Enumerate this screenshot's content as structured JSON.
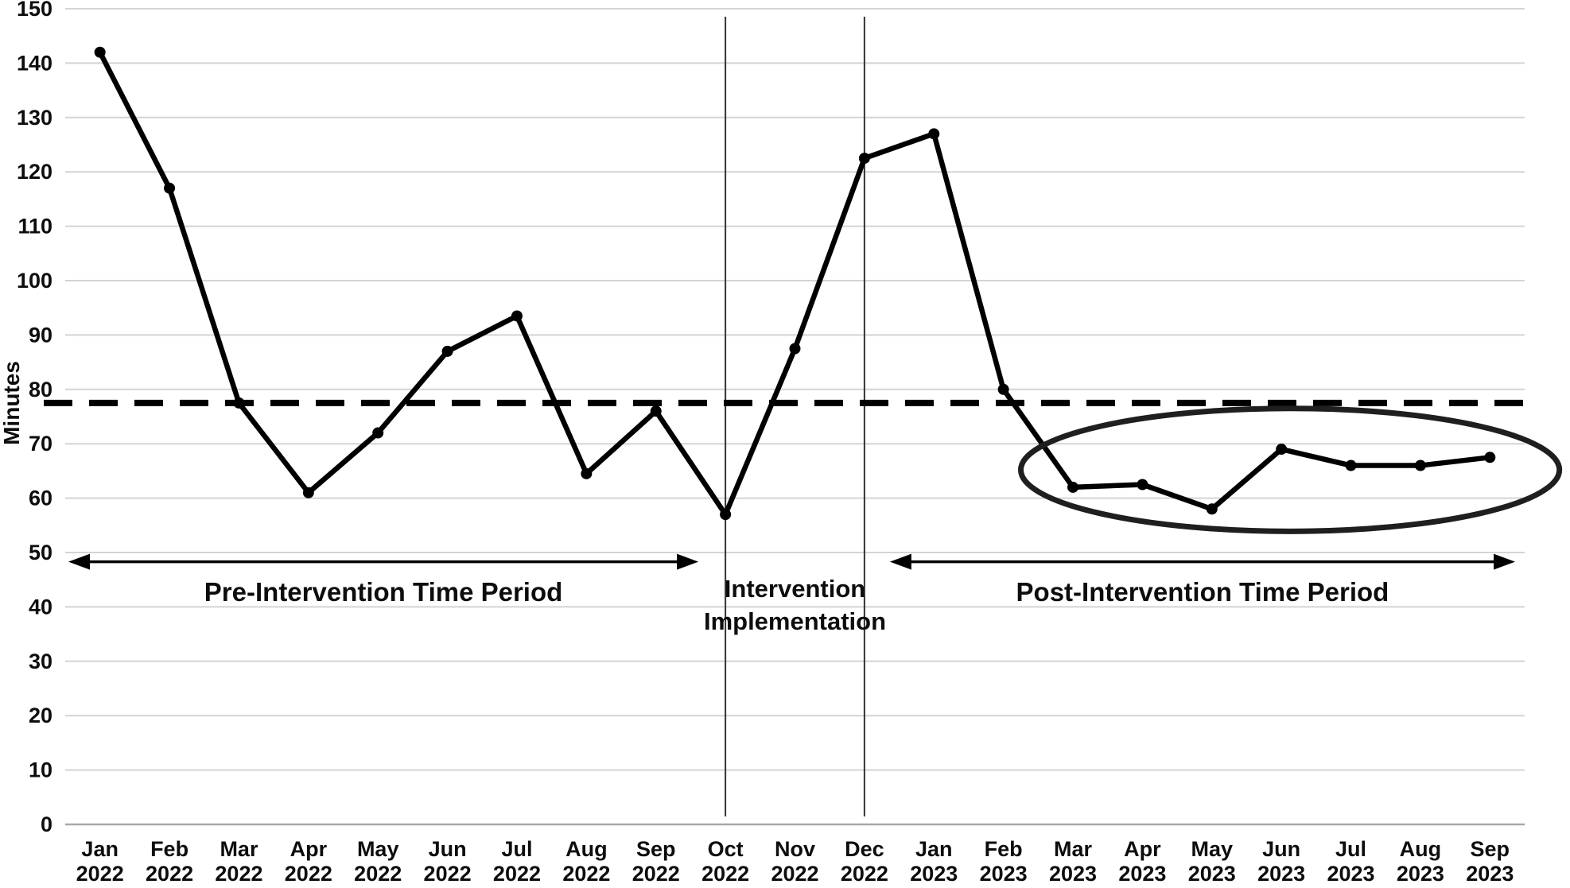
{
  "chart_data": {
    "type": "line",
    "title": "",
    "xlabel": "",
    "ylabel": "Minutes",
    "ylim": [
      0,
      150
    ],
    "ytick_step": 10,
    "grid": "horizontal",
    "legend": "none",
    "categories": [
      {
        "month": "Jan",
        "year": "2022"
      },
      {
        "month": "Feb",
        "year": "2022"
      },
      {
        "month": "Mar",
        "year": "2022"
      },
      {
        "month": "Apr",
        "year": "2022"
      },
      {
        "month": "May",
        "year": "2022"
      },
      {
        "month": "Jun",
        "year": "2022"
      },
      {
        "month": "Jul",
        "year": "2022"
      },
      {
        "month": "Aug",
        "year": "2022"
      },
      {
        "month": "Sep",
        "year": "2022"
      },
      {
        "month": "Oct",
        "year": "2022"
      },
      {
        "month": "Nov",
        "year": "2022"
      },
      {
        "month": "Dec",
        "year": "2022"
      },
      {
        "month": "Jan",
        "year": "2023"
      },
      {
        "month": "Feb",
        "year": "2023"
      },
      {
        "month": "Mar",
        "year": "2023"
      },
      {
        "month": "Apr",
        "year": "2023"
      },
      {
        "month": "May",
        "year": "2023"
      },
      {
        "month": "Jun",
        "year": "2023"
      },
      {
        "month": "Jul",
        "year": "2023"
      },
      {
        "month": "Aug",
        "year": "2023"
      },
      {
        "month": "Sep",
        "year": "2023"
      }
    ],
    "series": [
      {
        "name": "Minutes",
        "values": [
          142,
          117,
          77.5,
          61,
          72,
          87,
          93.5,
          64.5,
          76,
          57,
          87.5,
          122.5,
          127,
          80,
          62,
          62.5,
          58,
          69,
          66,
          66,
          67.5
        ]
      }
    ],
    "annotations": {
      "mean_line": {
        "value": 77.5,
        "style": "dashed"
      },
      "pre_period": {
        "label": "Pre-Intervention Time Period",
        "from_index": 0,
        "to_index": 9
      },
      "intervention_window": {
        "label_line1": "Intervention",
        "label_line2": "Implementation",
        "from_category": "Oct 2022",
        "to_category": "Dec 2022",
        "from_index": 9,
        "to_index": 11
      },
      "post_period": {
        "label": "Post-Intervention Time Period",
        "from_index": 11,
        "to_index": 20
      },
      "highlight_ellipse": {
        "from_index": 14,
        "to_index": 20,
        "center_value": 65.2,
        "value_radius": 11.3
      }
    },
    "colors": {
      "line": "#000000",
      "marker": "#000000",
      "grid": "#d4d4d4",
      "axis_line": "#a8a8a8",
      "boundary_line": "#333333",
      "annotation": "#1f1f1f"
    }
  }
}
